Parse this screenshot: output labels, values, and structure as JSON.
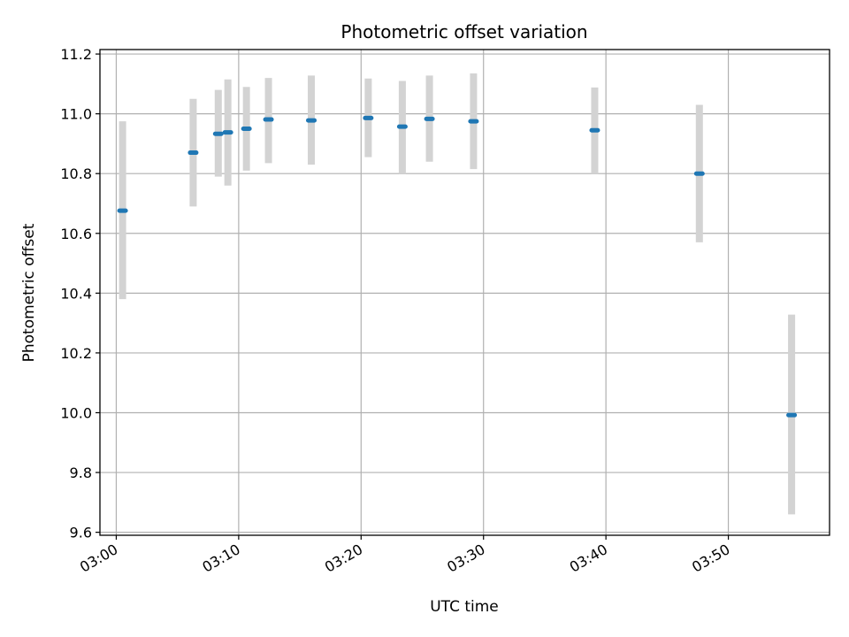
{
  "chart_data": {
    "type": "scatter",
    "title": "Photometric offset variation",
    "xlabel": "UTC time",
    "ylabel": "Photometric offset",
    "xlim": [
      "02:58:40",
      "03:58:16"
    ],
    "ylim": [
      9.59,
      11.215
    ],
    "x_ticks": [
      "03:00",
      "03:10",
      "03:20",
      "03:30",
      "03:40",
      "03:50"
    ],
    "y_ticks": [
      "9.6",
      "9.8",
      "10.0",
      "10.2",
      "10.4",
      "10.6",
      "10.8",
      "11.0",
      "11.2"
    ],
    "grid": true,
    "points": [
      {
        "x": "03:00:31",
        "y": 10.676,
        "yerr_low": 10.38,
        "yerr_high": 10.975
      },
      {
        "x": "03:06:17",
        "y": 10.87,
        "yerr_low": 10.69,
        "yerr_high": 11.05
      },
      {
        "x": "03:08:20",
        "y": 10.933,
        "yerr_low": 10.79,
        "yerr_high": 11.08
      },
      {
        "x": "03:09:07",
        "y": 10.938,
        "yerr_low": 10.76,
        "yerr_high": 11.115
      },
      {
        "x": "03:10:38",
        "y": 10.95,
        "yerr_low": 10.81,
        "yerr_high": 11.09
      },
      {
        "x": "03:12:26",
        "y": 10.981,
        "yerr_low": 10.835,
        "yerr_high": 11.12
      },
      {
        "x": "03:15:56",
        "y": 10.978,
        "yerr_low": 10.83,
        "yerr_high": 11.128
      },
      {
        "x": "03:20:35",
        "y": 10.986,
        "yerr_low": 10.855,
        "yerr_high": 11.118
      },
      {
        "x": "03:23:22",
        "y": 10.957,
        "yerr_low": 10.8,
        "yerr_high": 11.11
      },
      {
        "x": "03:25:35",
        "y": 10.983,
        "yerr_low": 10.84,
        "yerr_high": 11.128
      },
      {
        "x": "03:29:11",
        "y": 10.975,
        "yerr_low": 10.815,
        "yerr_high": 11.135
      },
      {
        "x": "03:39:05",
        "y": 10.945,
        "yerr_low": 10.8,
        "yerr_high": 11.088
      },
      {
        "x": "03:47:38",
        "y": 10.8,
        "yerr_low": 10.57,
        "yerr_high": 11.03
      },
      {
        "x": "03:55:10",
        "y": 9.992,
        "yerr_low": 9.66,
        "yerr_high": 10.328
      }
    ],
    "colors": {
      "marker": "#1f77b4",
      "errorbar": "#d3d3d3",
      "grid": "#b0b0b0"
    }
  }
}
